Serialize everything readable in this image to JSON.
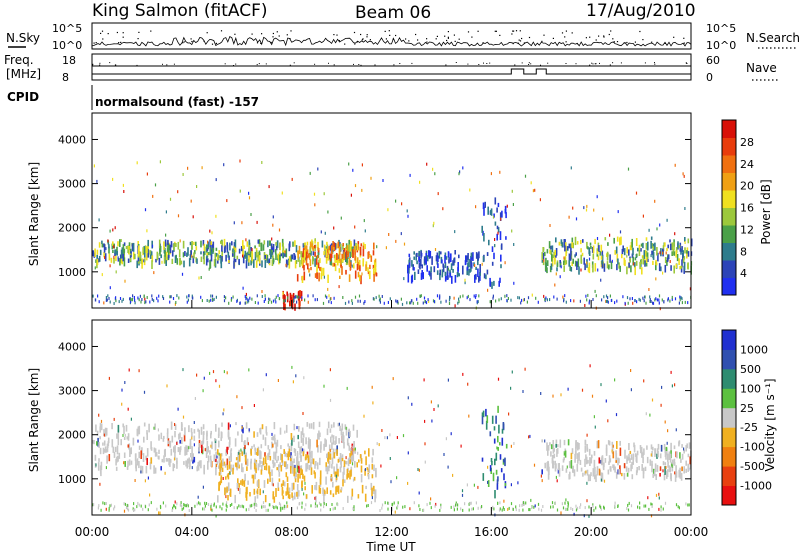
{
  "header": {
    "station": "King Salmon (fitACF)",
    "beam": "Beam 06",
    "date": "17/Aug/2010"
  },
  "top_panels": {
    "nsky_label": "N.Sky",
    "nsearch_label": "N.Search",
    "nsky_ticks": [
      "10^5",
      "10^0"
    ],
    "nsearch_ticks": [
      "10^5",
      "10^0"
    ],
    "freq_label_line1": "Freq.",
    "freq_label_line2": "[MHz]",
    "freq_ticks": [
      "18",
      "8"
    ],
    "nave_label": "Nave",
    "nave_ticks": [
      "60",
      "0"
    ],
    "cpid_label": "CPID",
    "cpid_text": "normalsound (fast) -157"
  },
  "chart_data": [
    {
      "type": "heatmap",
      "panel": "power",
      "ylabel": "Slant Range [km]",
      "xlabel": "",
      "y_ticks": [
        "1000",
        "2000",
        "3000",
        "4000"
      ],
      "ylim": [
        180,
        4600
      ],
      "colorbar": {
        "label": "Power [dB]",
        "ticks": [
          "4",
          "8",
          "12",
          "16",
          "20",
          "24",
          "28"
        ],
        "colors": [
          "#2030f0",
          "#2c44b8",
          "#2e7c8c",
          "#4aa048",
          "#9cc83c",
          "#f0e020",
          "#f0a014",
          "#f07010",
          "#e83c0c",
          "#d81008"
        ]
      },
      "features": [
        {
          "t_start": 0.0,
          "t_end": 10.6,
          "range_km": [
            1250,
            1750
          ],
          "level": "medium"
        },
        {
          "t_start": 8.2,
          "t_end": 11.4,
          "range_km": [
            900,
            1700
          ],
          "level": "high"
        },
        {
          "t_start": 7.6,
          "t_end": 8.4,
          "range_km": [
            250,
            600
          ],
          "level": "very high"
        },
        {
          "t_start": 12.6,
          "t_end": 15.6,
          "range_km": [
            900,
            1500
          ],
          "level": "low"
        },
        {
          "t_start": 15.6,
          "t_end": 16.6,
          "range_km": [
            700,
            2700
          ],
          "level": "low"
        },
        {
          "t_start": 18.0,
          "t_end": 24.0,
          "range_km": [
            1100,
            1800
          ],
          "level": "medium"
        }
      ]
    },
    {
      "type": "heatmap",
      "panel": "velocity",
      "ylabel": "Slant Range [km]",
      "xlabel": "Time UT",
      "x_ticks": [
        "00:00",
        "04:00",
        "08:00",
        "12:00",
        "16:00",
        "20:00",
        "00:00"
      ],
      "y_ticks": [
        "1000",
        "2000",
        "3000",
        "4000"
      ],
      "ylim": [
        180,
        4600
      ],
      "colorbar": {
        "label": "Velocity [m s⁻¹]",
        "ticks": [
          "1000",
          "500",
          "100",
          "25",
          "-25",
          "-100",
          "-500",
          "-1000"
        ],
        "colors": [
          "#2030d0",
          "#3050b0",
          "#2e8c70",
          "#5cc040",
          "#c8c8c8",
          "#f0b020",
          "#f08010",
          "#e84010",
          "#e81010"
        ]
      },
      "features": [
        {
          "t_start": 0.0,
          "t_end": 10.6,
          "range_km": [
            1250,
            2300
          ],
          "level": "grey ground/low velocity"
        },
        {
          "t_start": 5.0,
          "t_end": 11.4,
          "range_km": [
            600,
            1700
          ],
          "level": "orange -100"
        },
        {
          "t_start": 15.6,
          "t_end": 16.6,
          "range_km": [
            700,
            2700
          ],
          "level": "green/blue"
        },
        {
          "t_start": 18.0,
          "t_end": 24.0,
          "range_km": [
            1100,
            1900
          ],
          "level": "grey"
        }
      ]
    }
  ]
}
